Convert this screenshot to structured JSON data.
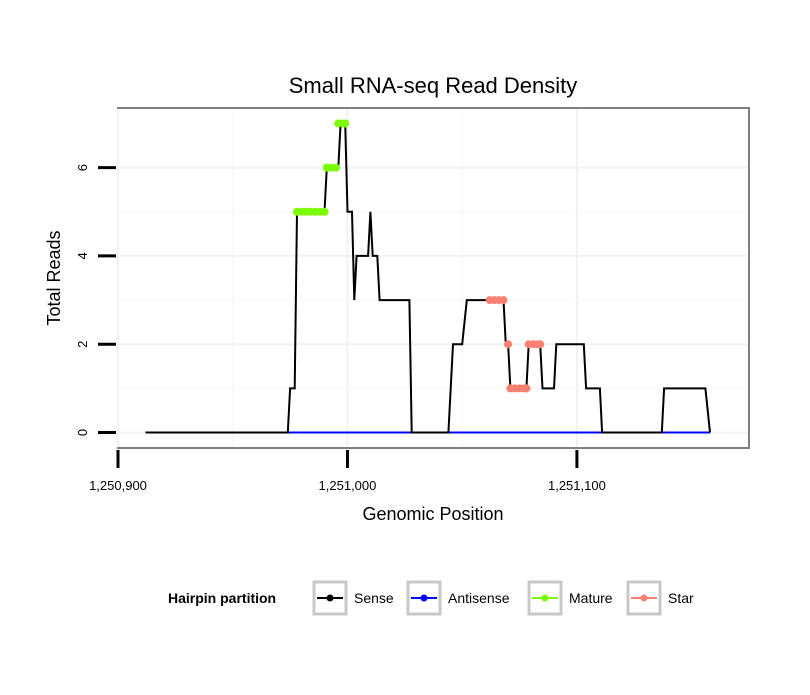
{
  "chart_data": {
    "type": "line",
    "title": "Small RNA-seq Read Density",
    "xlabel": "Genomic Position",
    "ylabel": "Total Reads",
    "xlim": [
      1250900,
      1251175
    ],
    "ylim": [
      -0.35,
      7.35
    ],
    "x_ticks": [
      {
        "value": 1250900,
        "label": "1,250,900"
      },
      {
        "value": 1251000,
        "label": "1,251,000"
      },
      {
        "value": 1251100,
        "label": "1,251,100"
      }
    ],
    "y_ticks": [
      {
        "value": 0,
        "label": "0"
      },
      {
        "value": 2,
        "label": "2"
      },
      {
        "value": 4,
        "label": "4"
      },
      {
        "value": 6,
        "label": "6"
      }
    ],
    "grid": true,
    "legend": {
      "title": "Hairpin partition",
      "position": "bottom",
      "entries": [
        {
          "name": "Sense",
          "color": "#000000"
        },
        {
          "name": "Antisense",
          "color": "#0000ff"
        },
        {
          "name": "Mature",
          "color": "#7cfc00"
        },
        {
          "name": "Star",
          "color": "#fa8072"
        }
      ]
    },
    "series": [
      {
        "name": "Sense",
        "color": "#000000",
        "kind": "line",
        "points": [
          [
            1250912,
            0
          ],
          [
            1250974,
            0
          ],
          [
            1250975,
            1
          ],
          [
            1250977,
            1
          ],
          [
            1250978,
            5
          ],
          [
            1250990,
            5
          ],
          [
            1250991,
            6
          ],
          [
            1250996,
            6
          ],
          [
            1250997,
            7
          ],
          [
            1250999,
            7
          ],
          [
            1251000,
            5
          ],
          [
            1251002,
            5
          ],
          [
            1251003,
            3
          ],
          [
            1251004,
            4
          ],
          [
            1251009,
            4
          ],
          [
            1251010,
            5
          ],
          [
            1251011,
            4
          ],
          [
            1251013,
            4
          ],
          [
            1251014,
            3
          ],
          [
            1251027,
            3
          ],
          [
            1251028,
            0
          ],
          [
            1251044,
            0
          ],
          [
            1251046,
            2
          ],
          [
            1251050,
            2
          ],
          [
            1251052,
            3
          ],
          [
            1251068,
            3
          ],
          [
            1251069,
            2
          ],
          [
            1251070,
            2
          ],
          [
            1251071,
            1
          ],
          [
            1251078,
            1
          ],
          [
            1251079,
            2
          ],
          [
            1251084,
            2
          ],
          [
            1251085,
            1
          ],
          [
            1251090,
            1
          ],
          [
            1251091,
            2
          ],
          [
            1251103,
            2
          ],
          [
            1251104,
            1
          ],
          [
            1251110,
            1
          ],
          [
            1251111,
            0
          ],
          [
            1251137,
            0
          ],
          [
            1251138,
            1
          ],
          [
            1251156,
            1
          ],
          [
            1251158,
            0
          ]
        ]
      },
      {
        "name": "Antisense",
        "color": "#0000ff",
        "kind": "line",
        "points": [
          [
            1250912,
            0
          ],
          [
            1251158,
            0
          ]
        ]
      },
      {
        "name": "Mature",
        "color": "#7cfc00",
        "kind": "points",
        "points": [
          [
            1250978,
            5
          ],
          [
            1250980,
            5
          ],
          [
            1250982,
            5
          ],
          [
            1250984,
            5
          ],
          [
            1250986,
            5
          ],
          [
            1250988,
            5
          ],
          [
            1250990,
            5
          ],
          [
            1250991,
            6
          ],
          [
            1250993,
            6
          ],
          [
            1250995,
            6
          ],
          [
            1250996,
            7
          ],
          [
            1250998,
            7
          ],
          [
            1250999,
            7
          ]
        ]
      },
      {
        "name": "Star",
        "color": "#fa8072",
        "kind": "points",
        "points": [
          [
            1251062,
            3
          ],
          [
            1251064,
            3
          ],
          [
            1251066,
            3
          ],
          [
            1251068,
            3
          ],
          [
            1251070,
            2
          ],
          [
            1251071,
            1
          ],
          [
            1251073,
            1
          ],
          [
            1251075,
            1
          ],
          [
            1251077,
            1
          ],
          [
            1251078,
            1
          ],
          [
            1251079,
            2
          ],
          [
            1251081,
            2
          ],
          [
            1251083,
            2
          ],
          [
            1251084,
            2
          ]
        ]
      }
    ]
  }
}
